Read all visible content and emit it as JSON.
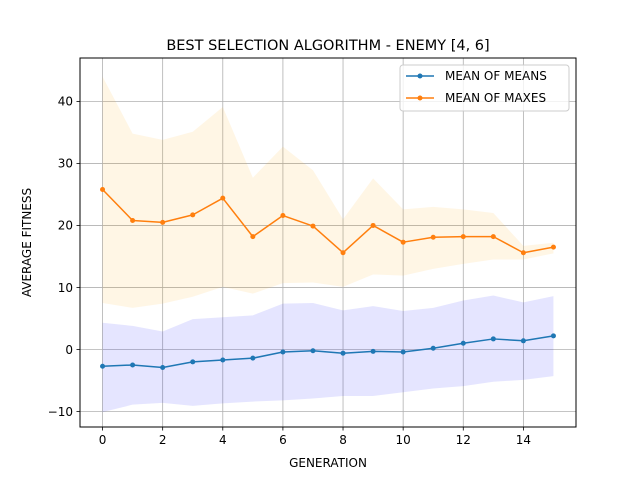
{
  "chart_data": {
    "type": "line",
    "title": "BEST SELECTION ALGORITHM - ENEMY [4, 6]",
    "xlabel": "GENERATION",
    "ylabel": "AVERAGE FITNESS",
    "xlim": [
      -0.75,
      15.75
    ],
    "ylim": [
      -12.5,
      47
    ],
    "xticks": [
      0,
      2,
      4,
      6,
      8,
      10,
      12,
      14
    ],
    "yticks": [
      -10,
      0,
      10,
      20,
      30,
      40
    ],
    "grid": true,
    "legend_position": "top-right",
    "x": [
      0,
      1,
      2,
      3,
      4,
      5,
      6,
      7,
      8,
      9,
      10,
      11,
      12,
      13,
      14,
      15
    ],
    "series": [
      {
        "name": "MEAN OF MEANS",
        "color": "#1f77b4",
        "band_color": "#0000ff",
        "values": [
          -2.7,
          -2.5,
          -2.9,
          -2.0,
          -1.7,
          -1.4,
          -0.4,
          -0.2,
          -0.6,
          -0.3,
          -0.4,
          0.2,
          1.0,
          1.7,
          1.4,
          2.2
        ],
        "band_upper": [
          4.3,
          3.8,
          2.9,
          4.9,
          5.2,
          5.5,
          7.4,
          7.5,
          6.3,
          7.0,
          6.2,
          6.7,
          7.9,
          8.7,
          7.6,
          8.6
        ],
        "band_lower": [
          -10.1,
          -8.9,
          -8.6,
          -9.1,
          -8.7,
          -8.4,
          -8.2,
          -7.9,
          -7.5,
          -7.5,
          -6.9,
          -6.3,
          -5.9,
          -5.2,
          -4.9,
          -4.3
        ]
      },
      {
        "name": "MEAN OF MAXES",
        "color": "#ff7f0e",
        "band_color": "#ffa500",
        "values": [
          25.8,
          20.8,
          20.5,
          21.7,
          24.4,
          18.2,
          21.6,
          19.9,
          15.6,
          20.0,
          17.3,
          18.1,
          18.2,
          18.2,
          15.6,
          16.5
        ],
        "band_upper": [
          44.0,
          34.8,
          33.8,
          35.1,
          39.1,
          27.7,
          32.7,
          28.9,
          21.0,
          27.6,
          22.6,
          23.0,
          22.6,
          22.0,
          16.7,
          17.2
        ],
        "band_lower": [
          7.5,
          6.7,
          7.4,
          8.5,
          10.1,
          9.0,
          10.7,
          10.8,
          10.1,
          12.1,
          11.9,
          13.0,
          13.8,
          14.5,
          14.5,
          15.5
        ]
      }
    ]
  }
}
